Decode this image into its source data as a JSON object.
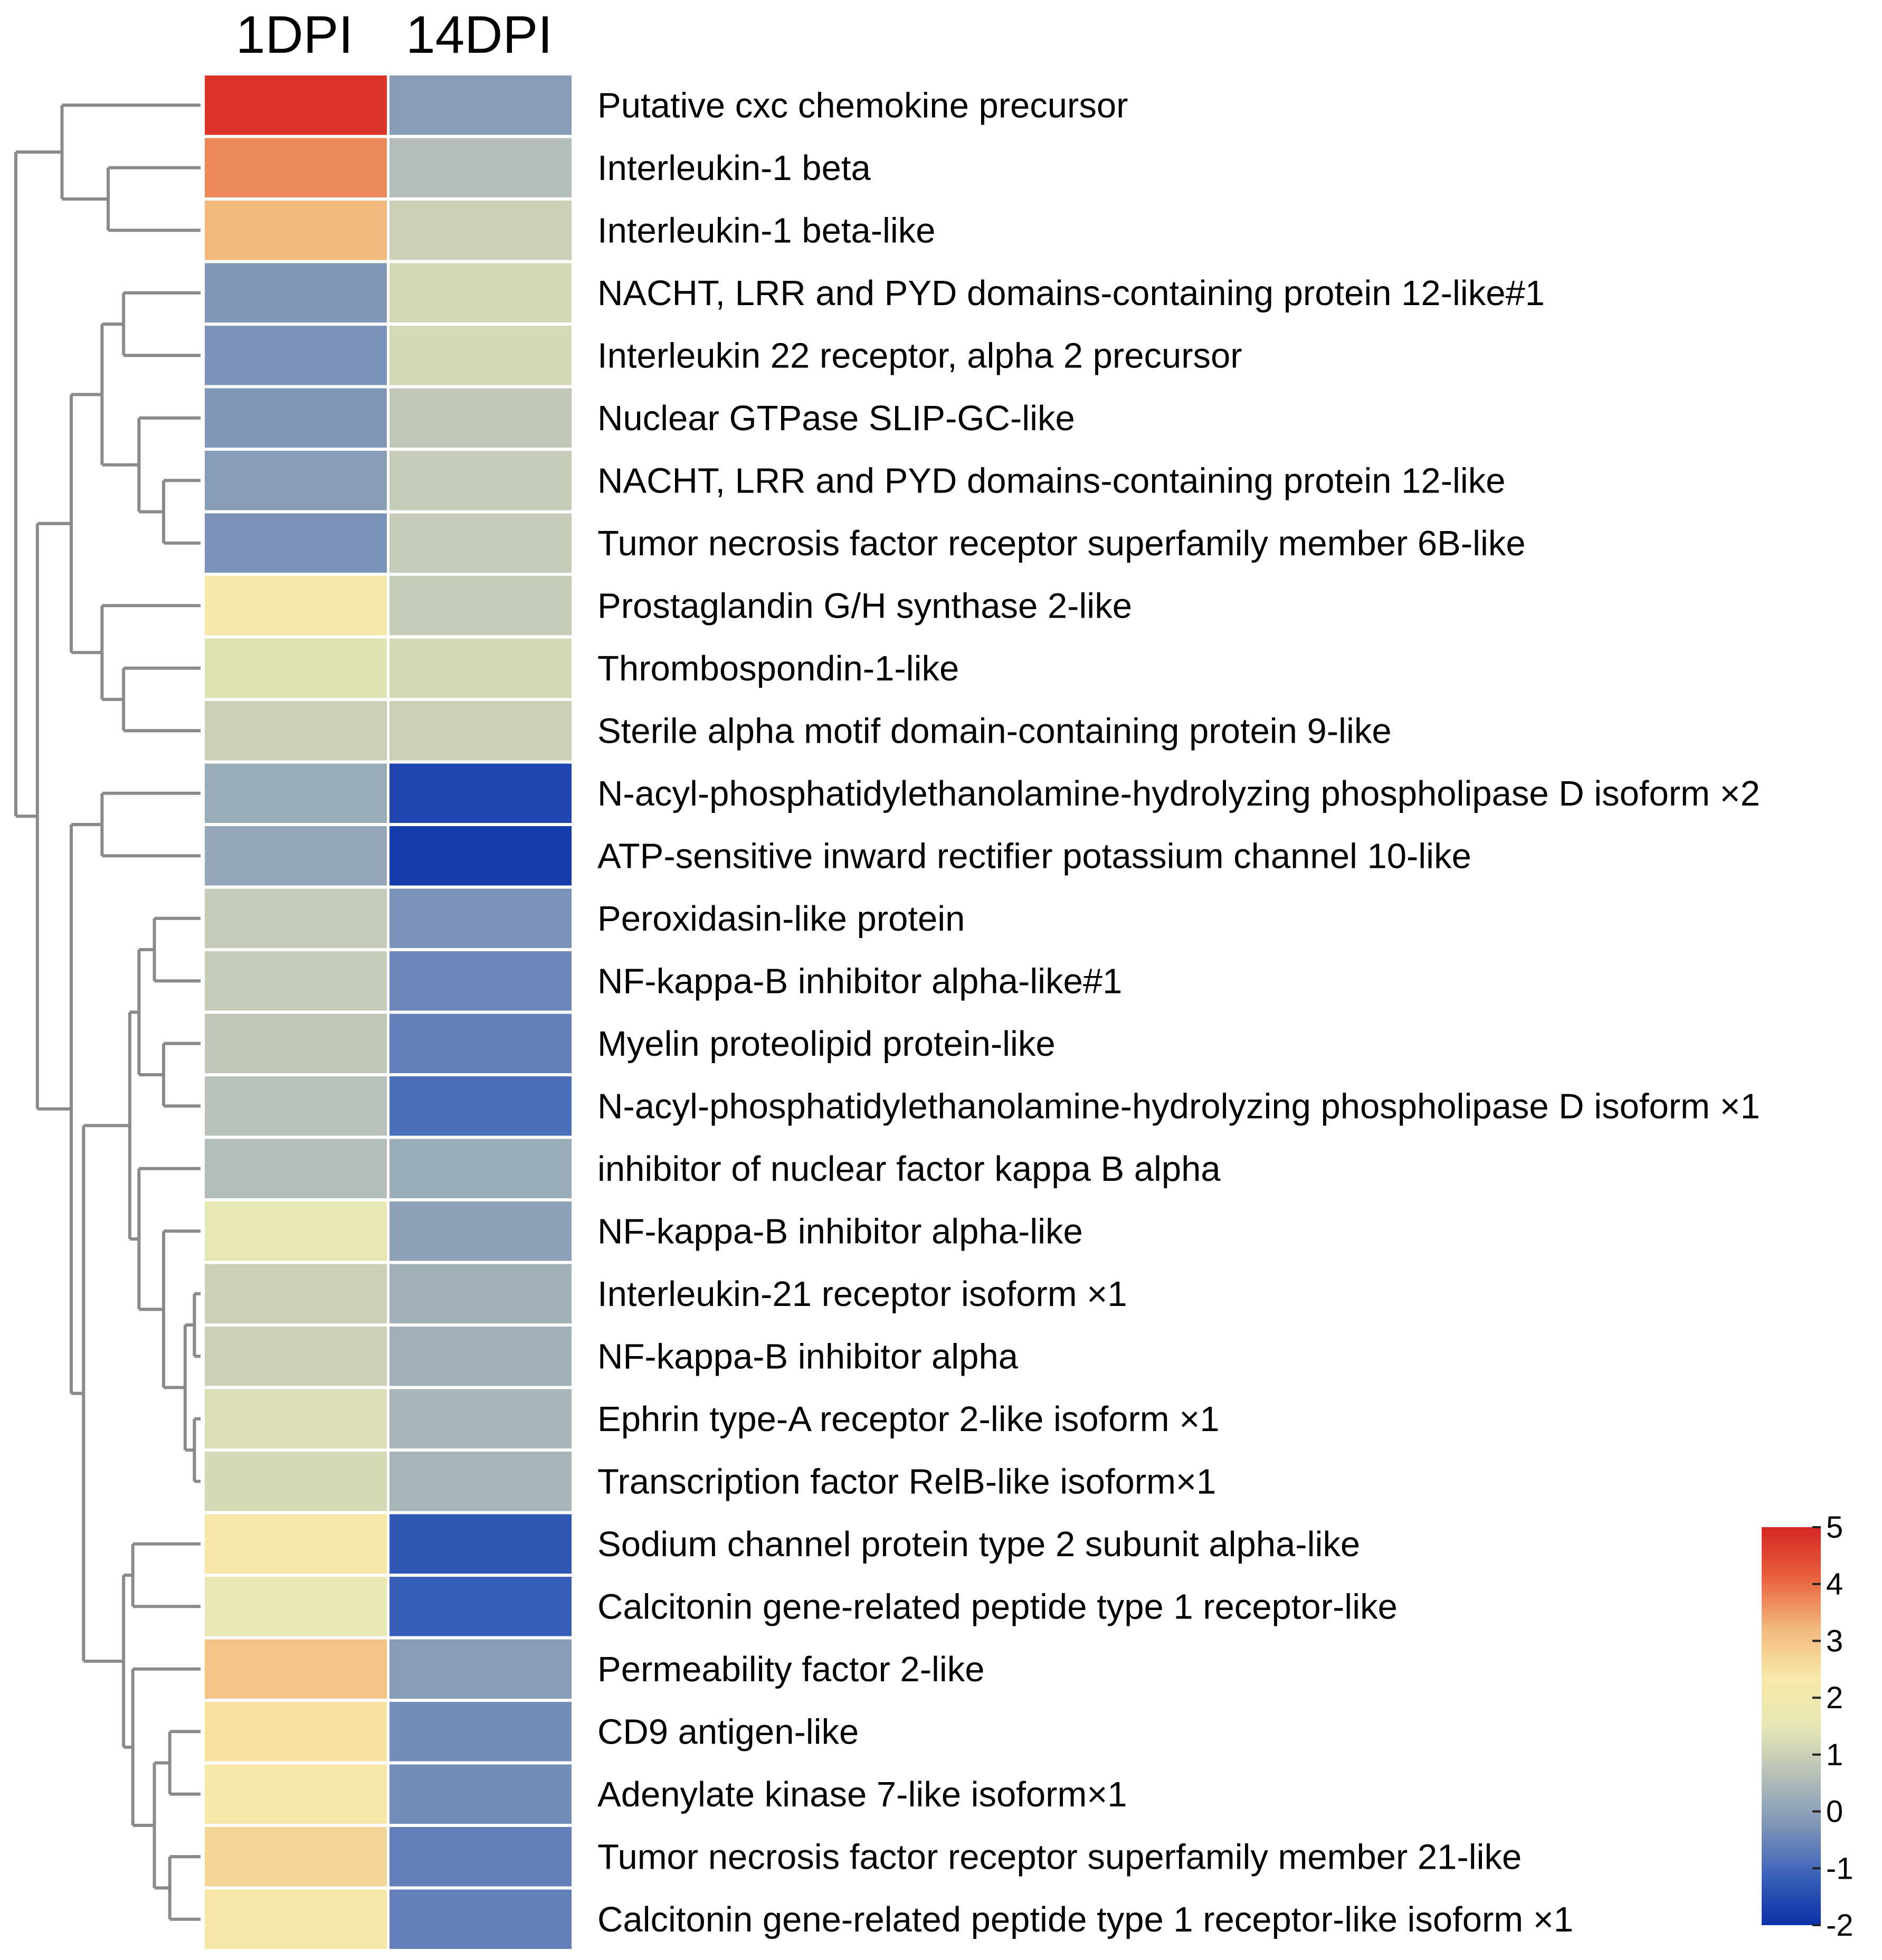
{
  "chart_data": {
    "type": "heatmap",
    "title": "",
    "columns": [
      "1DPI",
      "14DPI"
    ],
    "rows": [
      "Putative cxc chemokine precursor",
      "Interleukin-1 beta",
      "Interleukin-1 beta-like",
      "NACHT, LRR and PYD domains-containing protein 12-like#1",
      "Interleukin 22 receptor, alpha 2 precursor",
      "Nuclear GTPase SLIP-GC-like",
      "NACHT, LRR and PYD domains-containing protein 12-like",
      "Tumor necrosis factor receptor superfamily member 6B-like",
      "Prostaglandin G/H synthase 2-like",
      "Thrombospondin-1-like",
      "Sterile alpha motif domain-containing protein 9-like",
      "N-acyl-phosphatidylethanolamine-hydrolyzing phospholipase D isoform ×2",
      "ATP-sensitive inward rectifier potassium channel 10-like",
      "Peroxidasin-like protein",
      "NF-kappa-B inhibitor alpha-like#1",
      "Myelin proteolipid protein-like",
      "N-acyl-phosphatidylethanolamine-hydrolyzing phospholipase D isoform ×1",
      "inhibitor of nuclear factor kappa B alpha",
      "NF-kappa-B inhibitor alpha-like",
      "Interleukin-21 receptor isoform ×1",
      "NF-kappa-B inhibitor alpha",
      "Ephrin type-A receptor 2-like isoform ×1",
      "Transcription factor RelB-like isoform×1",
      "Sodium channel protein type 2 subunit alpha-like",
      "Calcitonin gene-related peptide type 1 receptor-like",
      "Permeability factor 2-like",
      "CD9 antigen-like",
      "Adenylate kinase 7-like isoform×1",
      "Tumor necrosis factor receptor superfamily member 21-like",
      "Calcitonin gene-related peptide type 1 receptor-like isoform ×1"
    ],
    "values": [
      [
        4.8,
        -0.1
      ],
      [
        3.7,
        0.6
      ],
      [
        3.2,
        1.0
      ],
      [
        -0.2,
        1.2
      ],
      [
        -0.3,
        1.2
      ],
      [
        -0.2,
        0.8
      ],
      [
        -0.1,
        0.9
      ],
      [
        -0.3,
        0.9
      ],
      [
        2.2,
        0.9
      ],
      [
        1.4,
        1.2
      ],
      [
        1.0,
        1.0
      ],
      [
        0.2,
        -1.6
      ],
      [
        0.1,
        -1.8
      ],
      [
        0.9,
        -0.3
      ],
      [
        0.9,
        -0.5
      ],
      [
        0.8,
        -0.6
      ],
      [
        0.7,
        -0.9
      ],
      [
        0.6,
        0.2
      ],
      [
        1.5,
        0.0
      ],
      [
        1.0,
        0.3
      ],
      [
        1.0,
        0.3
      ],
      [
        1.3,
        0.4
      ],
      [
        1.2,
        0.4
      ],
      [
        2.4,
        -1.3
      ],
      [
        1.6,
        -1.2
      ],
      [
        3.0,
        -0.1
      ],
      [
        2.5,
        -0.4
      ],
      [
        2.3,
        -0.4
      ],
      [
        2.7,
        -0.6
      ],
      [
        2.4,
        -0.6
      ]
    ],
    "colorbar": {
      "min": -2,
      "max": 5,
      "ticks": [
        "5",
        "4",
        "3",
        "2",
        "1",
        "0",
        "-1",
        "-2"
      ],
      "colors": [
        "#0b2fa6",
        "#3b62ba",
        "#7e95b7",
        "#b5bfb8",
        "#e7e7b4",
        "#f7e8a8",
        "#f2b67a",
        "#e8603d",
        "#d42624"
      ]
    },
    "dendrogram": {
      "leaf_order": [
        0,
        1,
        2,
        3,
        4,
        5,
        6,
        7,
        8,
        9,
        10,
        11,
        12,
        13,
        14,
        15,
        16,
        17,
        18,
        19,
        20,
        21,
        22,
        23,
        24,
        25,
        26,
        27,
        28,
        29
      ],
      "merges": [
        [
          1,
          2,
          0.3
        ],
        [
          0,
          30,
          0.45
        ],
        [
          3,
          4,
          0.25
        ],
        [
          6,
          7,
          0.12
        ],
        [
          5,
          33,
          0.2
        ],
        [
          32,
          34,
          0.32
        ],
        [
          9,
          10,
          0.25
        ],
        [
          8,
          36,
          0.32
        ],
        [
          35,
          37,
          0.42
        ],
        [
          11,
          12,
          0.32
        ],
        [
          13,
          14,
          0.15
        ],
        [
          15,
          16,
          0.12
        ],
        [
          40,
          41,
          0.2
        ],
        [
          19,
          20,
          0.02
        ],
        [
          21,
          22,
          0.02
        ],
        [
          43,
          44,
          0.05
        ],
        [
          18,
          45,
          0.12
        ],
        [
          17,
          46,
          0.2
        ],
        [
          42,
          47,
          0.23
        ],
        [
          23,
          24,
          0.22
        ],
        [
          26,
          27,
          0.1
        ],
        [
          28,
          29,
          0.1
        ],
        [
          50,
          51,
          0.15
        ],
        [
          25,
          52,
          0.22
        ],
        [
          49,
          53,
          0.25
        ],
        [
          48,
          54,
          0.38
        ],
        [
          39,
          55,
          0.42
        ],
        [
          38,
          56,
          0.53
        ],
        [
          31,
          57,
          0.6
        ]
      ]
    }
  }
}
